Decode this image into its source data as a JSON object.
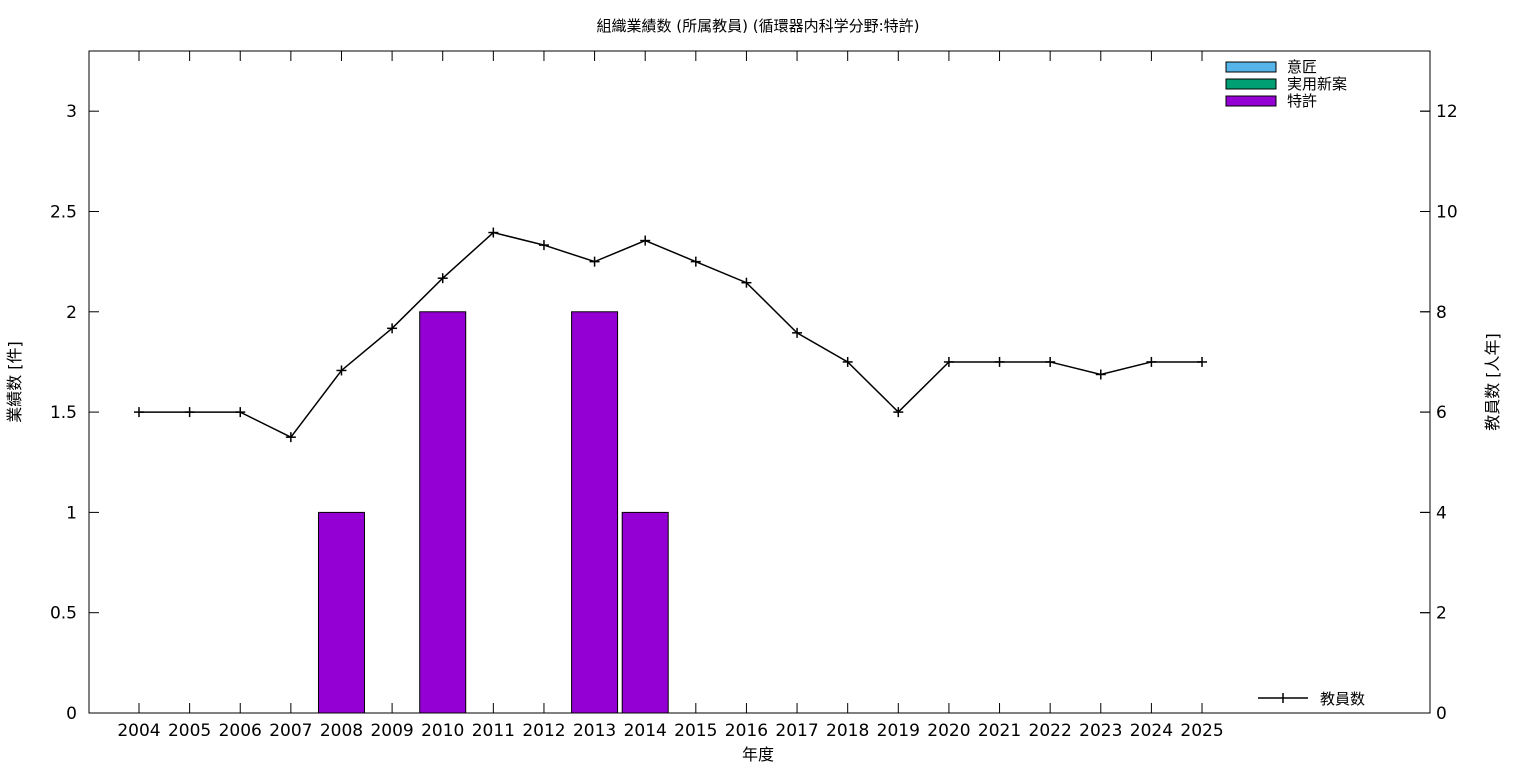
{
  "chart_data": {
    "type": "bar",
    "title": "組織業績数 (所属教員) (循環器内科学分野:特許)",
    "xlabel": "年度",
    "ylabel": "業績数 [件]",
    "y2label": "教員数 [人年]",
    "categories": [
      "2004",
      "2005",
      "2006",
      "2007",
      "2008",
      "2009",
      "2010",
      "2011",
      "2012",
      "2013",
      "2014",
      "2015",
      "2016",
      "2017",
      "2018",
      "2019",
      "2020",
      "2021",
      "2022",
      "2023",
      "2024",
      "2025"
    ],
    "ylim": [
      0,
      3.3
    ],
    "y2lim": [
      0,
      13.2
    ],
    "yticks": [
      "0",
      "0.5",
      "1",
      "1.5",
      "2",
      "2.5",
      "3"
    ],
    "y2ticks": [
      "0",
      "2",
      "4",
      "6",
      "8",
      "10",
      "12"
    ],
    "grid": false,
    "legend_position": "top-right",
    "series": [
      {
        "name": "意匠",
        "kind": "bar",
        "color": "#56b4e9",
        "values": [
          0,
          0,
          0,
          0,
          0,
          0,
          0,
          0,
          0,
          0,
          0,
          0,
          0,
          0,
          0,
          0,
          0,
          0,
          0,
          0,
          0,
          0
        ]
      },
      {
        "name": "実用新案",
        "kind": "bar",
        "color": "#009e73",
        "values": [
          0,
          0,
          0,
          0,
          0,
          0,
          0,
          0,
          0,
          0,
          0,
          0,
          0,
          0,
          0,
          0,
          0,
          0,
          0,
          0,
          0,
          0
        ]
      },
      {
        "name": "特許",
        "kind": "bar",
        "color": "#9400d3",
        "values": [
          0,
          0,
          0,
          0,
          1,
          0,
          2,
          0,
          0,
          2,
          1,
          0,
          0,
          0,
          0,
          0,
          0,
          0,
          0,
          0,
          0,
          0
        ]
      },
      {
        "name": "教員数",
        "kind": "line",
        "axis": "y2",
        "color": "#000000",
        "values": [
          6,
          6,
          6,
          5.5,
          6.83,
          7.67,
          8.67,
          9.58,
          9.33,
          9,
          9.42,
          9,
          8.58,
          7.58,
          7,
          6,
          7,
          7,
          7,
          6.75,
          7,
          7
        ]
      }
    ]
  }
}
